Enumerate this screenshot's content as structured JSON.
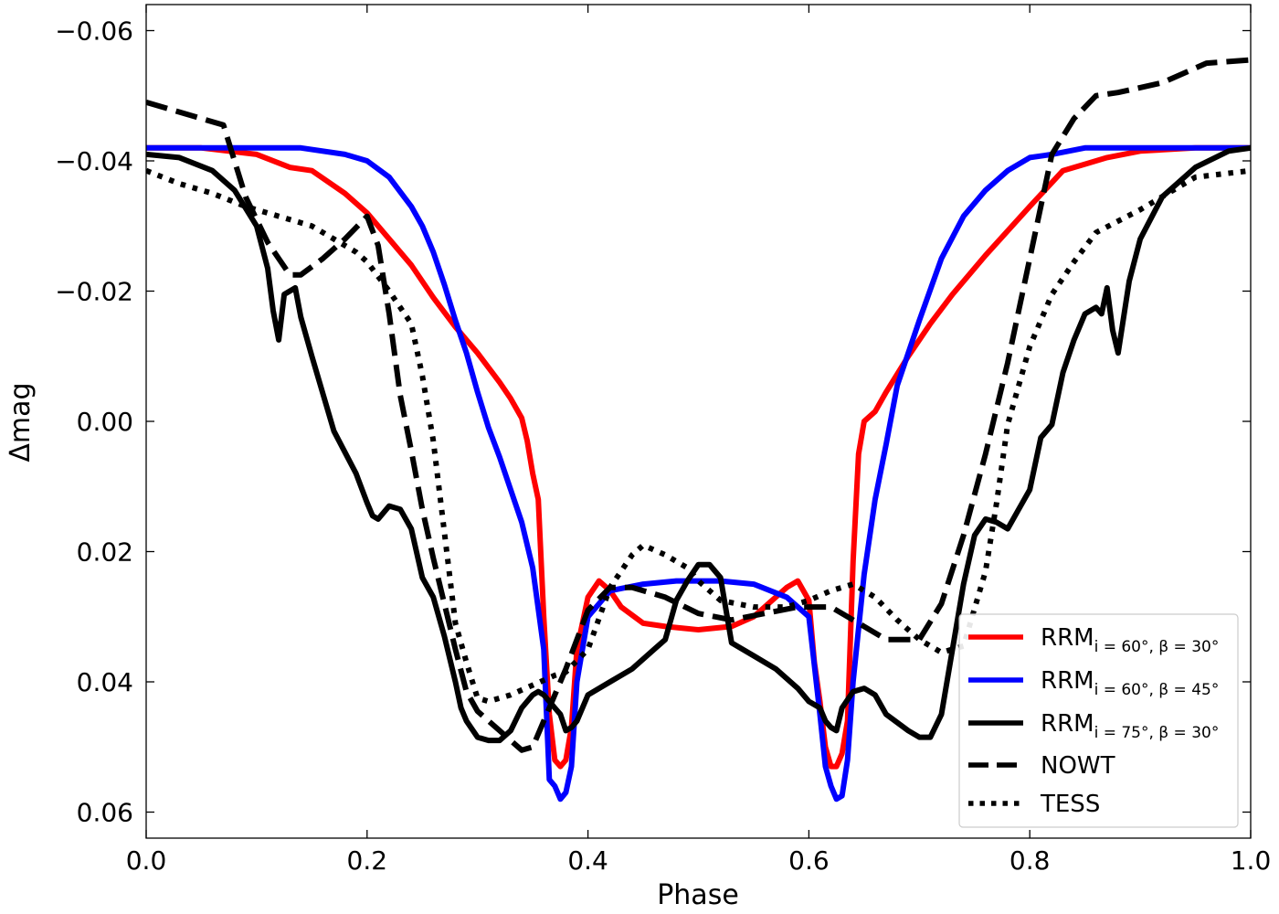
{
  "chart_data": {
    "type": "line",
    "title": "",
    "xlabel": "Phase",
    "ylabel": "Δmag",
    "xlim": [
      0.0,
      1.0
    ],
    "ylim": [
      0.064,
      -0.064
    ],
    "y_inverted": true,
    "grid": false,
    "legend_position": "bottom-right",
    "xticks": [
      0.0,
      0.2,
      0.4,
      0.6,
      0.8,
      1.0
    ],
    "xtick_labels": [
      "0.0",
      "0.2",
      "0.4",
      "0.6",
      "0.8",
      "1.0"
    ],
    "yticks": [
      -0.06,
      -0.04,
      -0.02,
      0.0,
      0.02,
      0.04,
      0.06
    ],
    "ytick_labels": [
      "−0.06",
      "−0.04",
      "−0.02",
      "0.00",
      "0.02",
      "0.04",
      "0.06"
    ],
    "series": [
      {
        "name": "RRM_{i=60°, β=30°}",
        "legend_main": "RRM",
        "legend_sub": "i = 60°, β = 30°",
        "color": "#ff0000",
        "style": "solid",
        "x": [
          0.0,
          0.05,
          0.1,
          0.13,
          0.15,
          0.18,
          0.2,
          0.22,
          0.24,
          0.26,
          0.28,
          0.3,
          0.32,
          0.33,
          0.34,
          0.345,
          0.35,
          0.355,
          0.36,
          0.365,
          0.37,
          0.375,
          0.38,
          0.385,
          0.39,
          0.4,
          0.41,
          0.42,
          0.43,
          0.45,
          0.47,
          0.5,
          0.53,
          0.55,
          0.57,
          0.58,
          0.59,
          0.6,
          0.605,
          0.61,
          0.615,
          0.62,
          0.625,
          0.63,
          0.635,
          0.64,
          0.645,
          0.65,
          0.66,
          0.67,
          0.69,
          0.71,
          0.73,
          0.76,
          0.8,
          0.83,
          0.85,
          0.87,
          0.9,
          0.95,
          1.0
        ],
        "values": [
          -0.042,
          -0.042,
          -0.041,
          -0.039,
          -0.0385,
          -0.035,
          -0.032,
          -0.028,
          -0.024,
          -0.019,
          -0.0145,
          -0.0105,
          -0.006,
          -0.0035,
          -0.0005,
          0.003,
          0.008,
          0.012,
          0.03,
          0.045,
          0.052,
          0.053,
          0.052,
          0.047,
          0.035,
          0.027,
          0.0245,
          0.026,
          0.0285,
          0.031,
          0.0315,
          0.032,
          0.0315,
          0.03,
          0.027,
          0.0255,
          0.0245,
          0.0275,
          0.037,
          0.043,
          0.05,
          0.053,
          0.053,
          0.051,
          0.046,
          0.0215,
          0.005,
          0.0,
          -0.0015,
          -0.0045,
          -0.01,
          -0.015,
          -0.0195,
          -0.0255,
          -0.033,
          -0.0385,
          -0.0395,
          -0.0405,
          -0.0415,
          -0.042,
          -0.042
        ]
      },
      {
        "name": "RRM_{i=60°, β=45°}",
        "legend_main": "RRM",
        "legend_sub": "i = 60°, β = 45°",
        "color": "#0000ff",
        "style": "solid",
        "x": [
          0.0,
          0.05,
          0.1,
          0.14,
          0.18,
          0.2,
          0.22,
          0.24,
          0.25,
          0.26,
          0.27,
          0.28,
          0.29,
          0.3,
          0.31,
          0.32,
          0.33,
          0.34,
          0.35,
          0.36,
          0.365,
          0.37,
          0.375,
          0.38,
          0.385,
          0.39,
          0.4,
          0.42,
          0.45,
          0.48,
          0.5,
          0.52,
          0.55,
          0.58,
          0.6,
          0.61,
          0.615,
          0.62,
          0.625,
          0.63,
          0.635,
          0.64,
          0.65,
          0.66,
          0.67,
          0.68,
          0.7,
          0.72,
          0.74,
          0.76,
          0.78,
          0.8,
          0.82,
          0.85,
          0.9,
          0.95,
          1.0
        ],
        "values": [
          -0.042,
          -0.042,
          -0.042,
          -0.042,
          -0.041,
          -0.04,
          -0.0375,
          -0.033,
          -0.03,
          -0.026,
          -0.021,
          -0.0155,
          -0.0105,
          -0.0045,
          0.001,
          0.0055,
          0.0105,
          0.0155,
          0.0225,
          0.035,
          0.055,
          0.056,
          0.058,
          0.057,
          0.053,
          0.04,
          0.03,
          0.026,
          0.025,
          0.0245,
          0.0245,
          0.0245,
          0.025,
          0.027,
          0.03,
          0.045,
          0.053,
          0.056,
          0.058,
          0.0575,
          0.052,
          0.04,
          0.0235,
          0.012,
          0.0035,
          -0.0055,
          -0.0155,
          -0.025,
          -0.0315,
          -0.0355,
          -0.0385,
          -0.0405,
          -0.041,
          -0.042,
          -0.042,
          -0.042,
          -0.042
        ]
      },
      {
        "name": "RRM_{i=75°, β=30°}",
        "legend_main": "RRM",
        "legend_sub": "i = 75°, β = 30°",
        "color": "#000000",
        "style": "solid",
        "x": [
          0.0,
          0.03,
          0.06,
          0.08,
          0.1,
          0.11,
          0.115,
          0.12,
          0.125,
          0.13,
          0.135,
          0.14,
          0.15,
          0.17,
          0.19,
          0.2,
          0.205,
          0.21,
          0.22,
          0.23,
          0.24,
          0.25,
          0.26,
          0.27,
          0.28,
          0.285,
          0.29,
          0.3,
          0.31,
          0.32,
          0.33,
          0.34,
          0.35,
          0.355,
          0.36,
          0.365,
          0.37,
          0.375,
          0.38,
          0.385,
          0.39,
          0.4,
          0.42,
          0.44,
          0.46,
          0.47,
          0.48,
          0.49,
          0.5,
          0.51,
          0.52,
          0.53,
          0.55,
          0.57,
          0.59,
          0.6,
          0.61,
          0.615,
          0.62,
          0.625,
          0.63,
          0.64,
          0.65,
          0.66,
          0.67,
          0.69,
          0.7,
          0.71,
          0.72,
          0.73,
          0.74,
          0.75,
          0.76,
          0.77,
          0.78,
          0.79,
          0.8,
          0.81,
          0.82,
          0.83,
          0.84,
          0.85,
          0.86,
          0.865,
          0.87,
          0.875,
          0.88,
          0.89,
          0.9,
          0.92,
          0.95,
          0.98,
          1.0
        ],
        "values": [
          -0.041,
          -0.0405,
          -0.0385,
          -0.0355,
          -0.03,
          -0.0235,
          -0.017,
          -0.0125,
          -0.0195,
          -0.02,
          -0.0205,
          -0.016,
          -0.01,
          0.0015,
          0.008,
          0.0125,
          0.0145,
          0.015,
          0.013,
          0.0135,
          0.0165,
          0.024,
          0.027,
          0.033,
          0.04,
          0.044,
          0.046,
          0.0485,
          0.049,
          0.049,
          0.0475,
          0.044,
          0.042,
          0.0415,
          0.042,
          0.043,
          0.044,
          0.045,
          0.0475,
          0.047,
          0.046,
          0.042,
          0.04,
          0.038,
          0.035,
          0.0335,
          0.0275,
          0.0245,
          0.022,
          0.022,
          0.024,
          0.034,
          0.036,
          0.038,
          0.041,
          0.043,
          0.044,
          0.046,
          0.047,
          0.0475,
          0.044,
          0.0415,
          0.041,
          0.042,
          0.045,
          0.0475,
          0.0485,
          0.0485,
          0.045,
          0.035,
          0.025,
          0.0175,
          0.015,
          0.0155,
          0.0165,
          0.0135,
          0.0105,
          0.0025,
          0.0005,
          -0.0075,
          -0.0125,
          -0.0165,
          -0.0175,
          -0.0165,
          -0.0205,
          -0.014,
          -0.0105,
          -0.0215,
          -0.028,
          -0.0345,
          -0.039,
          -0.0415,
          -0.042
        ]
      },
      {
        "name": "NOWT",
        "color": "#000000",
        "style": "dashed",
        "x": [
          0.0,
          0.07,
          0.09,
          0.11,
          0.13,
          0.14,
          0.16,
          0.18,
          0.2,
          0.21,
          0.22,
          0.23,
          0.24,
          0.25,
          0.26,
          0.27,
          0.28,
          0.29,
          0.3,
          0.32,
          0.34,
          0.35,
          0.36,
          0.38,
          0.4,
          0.42,
          0.44,
          0.47,
          0.5,
          0.53,
          0.56,
          0.59,
          0.62,
          0.65,
          0.67,
          0.69,
          0.7,
          0.72,
          0.74,
          0.76,
          0.78,
          0.8,
          0.82,
          0.84,
          0.86,
          0.88,
          0.92,
          0.96,
          1.0
        ],
        "values": [
          -0.049,
          -0.0455,
          -0.0345,
          -0.0275,
          -0.0225,
          -0.0225,
          -0.025,
          -0.028,
          -0.0315,
          -0.027,
          -0.0165,
          -0.004,
          0.0045,
          0.0135,
          0.021,
          0.028,
          0.035,
          0.0415,
          0.0445,
          0.0475,
          0.0505,
          0.05,
          0.046,
          0.038,
          0.029,
          0.0255,
          0.0255,
          0.027,
          0.0295,
          0.0305,
          0.0295,
          0.0285,
          0.0285,
          0.0315,
          0.0335,
          0.0335,
          0.0335,
          0.028,
          0.0175,
          0.005,
          -0.009,
          -0.025,
          -0.041,
          -0.0465,
          -0.05,
          -0.0505,
          -0.052,
          -0.055,
          -0.0555
        ]
      },
      {
        "name": "TESS",
        "color": "#000000",
        "style": "dotted",
        "x": [
          0.0,
          0.03,
          0.06,
          0.09,
          0.12,
          0.15,
          0.17,
          0.19,
          0.2,
          0.22,
          0.24,
          0.25,
          0.26,
          0.27,
          0.28,
          0.29,
          0.3,
          0.31,
          0.33,
          0.35,
          0.37,
          0.38,
          0.4,
          0.42,
          0.44,
          0.45,
          0.47,
          0.49,
          0.5,
          0.52,
          0.55,
          0.58,
          0.6,
          0.62,
          0.64,
          0.66,
          0.68,
          0.7,
          0.72,
          0.74,
          0.76,
          0.77,
          0.78,
          0.8,
          0.82,
          0.84,
          0.86,
          0.9,
          0.95,
          1.0
        ],
        "values": [
          -0.0385,
          -0.0365,
          -0.035,
          -0.033,
          -0.0315,
          -0.03,
          -0.028,
          -0.026,
          -0.0245,
          -0.02,
          -0.015,
          -0.007,
          0.003,
          0.017,
          0.031,
          0.037,
          0.0425,
          0.043,
          0.042,
          0.0405,
          0.039,
          0.0385,
          0.035,
          0.0255,
          0.0205,
          0.019,
          0.0205,
          0.0225,
          0.0245,
          0.0275,
          0.0285,
          0.0285,
          0.0275,
          0.026,
          0.025,
          0.027,
          0.0305,
          0.0335,
          0.0355,
          0.0345,
          0.023,
          0.0125,
          0.0005,
          -0.0115,
          -0.0195,
          -0.0245,
          -0.029,
          -0.0325,
          -0.0375,
          -0.0385
        ]
      }
    ]
  }
}
